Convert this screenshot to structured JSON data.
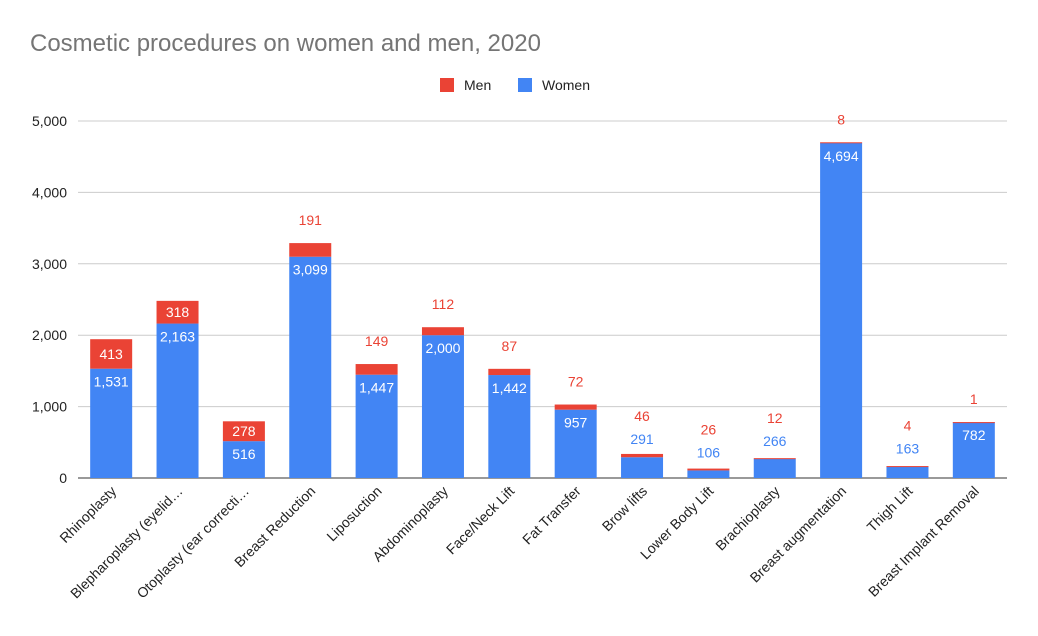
{
  "chart_data": {
    "type": "bar",
    "stacked": true,
    "title": "Cosmetic procedures on women and men, 2020",
    "xlabel": "",
    "ylabel": "",
    "ylim": [
      0,
      5000
    ],
    "yticks": [
      "0",
      "1,000",
      "2,000",
      "3,000",
      "4,000",
      "5,000"
    ],
    "ytick_values": [
      0,
      1000,
      2000,
      3000,
      4000,
      5000
    ],
    "grid": true,
    "legend_position": "top",
    "legend": [
      {
        "name": "Men",
        "color": "#ea4335"
      },
      {
        "name": "Women",
        "color": "#4285f4"
      }
    ],
    "categories": [
      "Rhinoplasty",
      "Blepharoplasty (eyelid…",
      "Otoplasty (ear correcti…",
      "Breast Reduction",
      "Liposuction",
      "Abdominoplasty",
      "Face/Neck Lift",
      "Fat Transfer",
      "Brow lifts",
      "Lower Body Lift",
      "Brachioplasty",
      "Breast augmentation",
      "Thigh Lift",
      "Breast Implant Removal"
    ],
    "series": [
      {
        "name": "Women",
        "color": "#4285f4",
        "values": [
          1531,
          2163,
          516,
          3099,
          1447,
          2000,
          1442,
          957,
          291,
          106,
          266,
          4694,
          163,
          782
        ],
        "labels": [
          "1,531",
          "2,163",
          "516",
          "3,099",
          "1,447",
          "2,000",
          "1,442",
          "957",
          "291",
          "106",
          "266",
          "4,694",
          "163",
          "782"
        ]
      },
      {
        "name": "Men",
        "color": "#ea4335",
        "values": [
          413,
          318,
          278,
          191,
          149,
          112,
          87,
          72,
          46,
          26,
          12,
          8,
          4,
          1
        ],
        "labels": [
          "413",
          "318",
          "278",
          "191",
          "149",
          "112",
          "87",
          "72",
          "46",
          "26",
          "12",
          "8",
          "4",
          "1"
        ]
      }
    ]
  }
}
